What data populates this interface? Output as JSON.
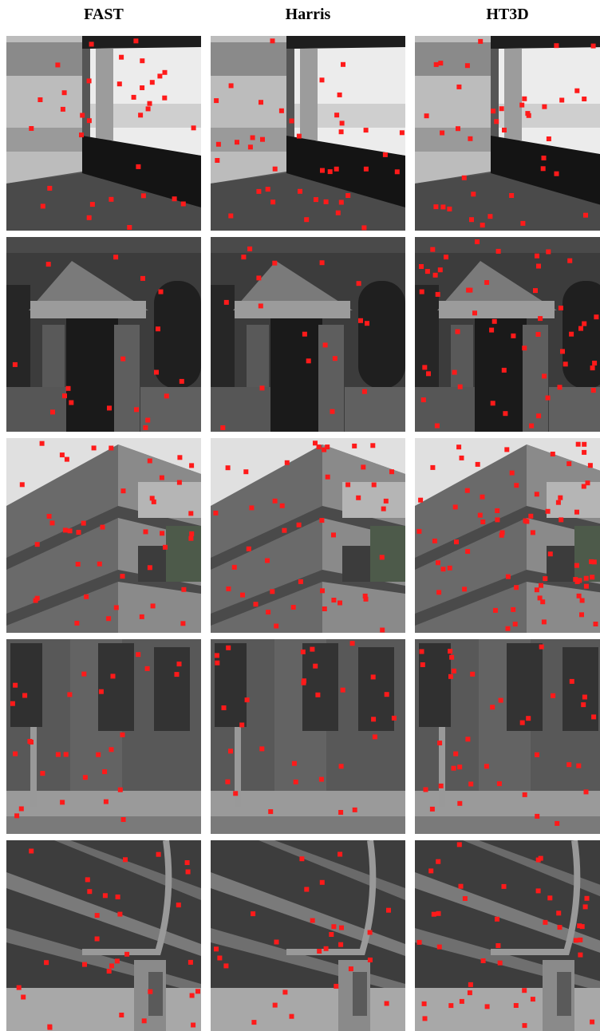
{
  "columns": [
    "FAST",
    "Harris",
    "HT3D"
  ]
}
